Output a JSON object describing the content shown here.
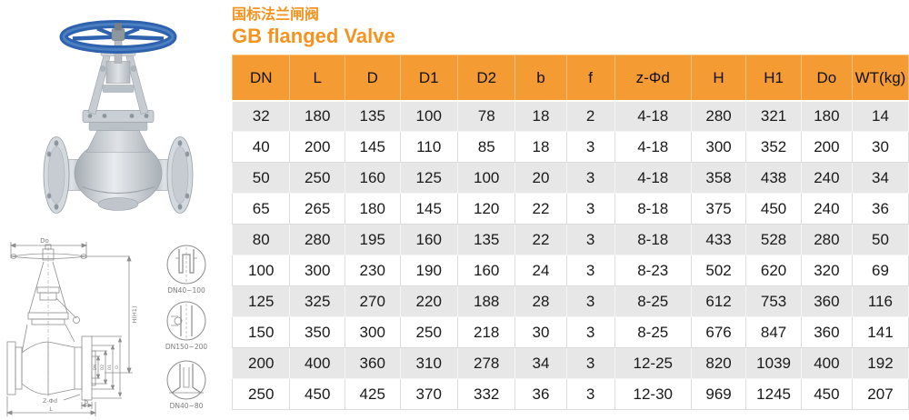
{
  "title": {
    "zh": "国标法兰闸阀",
    "en": "GB flanged Valve"
  },
  "colors": {
    "accent_orange": "#f6921e",
    "table_header_orange": "#f59b33",
    "row_alt_gray": "#e7e7e7",
    "handwheel_blue": "#2e62ae"
  },
  "table": {
    "columns": [
      "DN",
      "L",
      "D",
      "D1",
      "D2",
      "b",
      "f",
      "z-Φd",
      "H",
      "H1",
      "Do",
      "WT(kg)"
    ],
    "rows": [
      [
        "32",
        "180",
        "135",
        "100",
        "78",
        "18",
        "2",
        "4-18",
        "280",
        "321",
        "180",
        "14"
      ],
      [
        "40",
        "200",
        "145",
        "110",
        "85",
        "18",
        "3",
        "4-18",
        "300",
        "352",
        "200",
        "30"
      ],
      [
        "50",
        "250",
        "160",
        "125",
        "100",
        "20",
        "3",
        "4-18",
        "358",
        "438",
        "240",
        "34"
      ],
      [
        "65",
        "265",
        "180",
        "145",
        "120",
        "22",
        "3",
        "8-18",
        "375",
        "450",
        "240",
        "36"
      ],
      [
        "80",
        "280",
        "195",
        "160",
        "135",
        "22",
        "3",
        "8-18",
        "433",
        "528",
        "280",
        "50"
      ],
      [
        "100",
        "300",
        "230",
        "190",
        "160",
        "24",
        "3",
        "8-23",
        "502",
        "620",
        "320",
        "69"
      ],
      [
        "125",
        "325",
        "270",
        "220",
        "188",
        "28",
        "3",
        "8-25",
        "612",
        "753",
        "360",
        "116"
      ],
      [
        "150",
        "350",
        "300",
        "250",
        "218",
        "30",
        "3",
        "8-25",
        "676",
        "847",
        "360",
        "141"
      ],
      [
        "200",
        "400",
        "360",
        "310",
        "278",
        "34",
        "3",
        "12-25",
        "820",
        "1039",
        "400",
        "192"
      ],
      [
        "250",
        "450",
        "425",
        "370",
        "332",
        "36",
        "3",
        "12-30",
        "969",
        "1245",
        "450",
        "207"
      ]
    ]
  },
  "drawing": {
    "dim_do": "Do",
    "dim_h": "H(H1)",
    "dim_l": "L",
    "dim_b": "b",
    "dim_z": "Z-Φd",
    "dim_dn": "DN",
    "dim_d2": "D2",
    "dim_d1": "D1",
    "dim_d": "D",
    "detail_1": "DN40~100",
    "detail_2": "DN150~200",
    "detail_3": "DN40~80"
  }
}
